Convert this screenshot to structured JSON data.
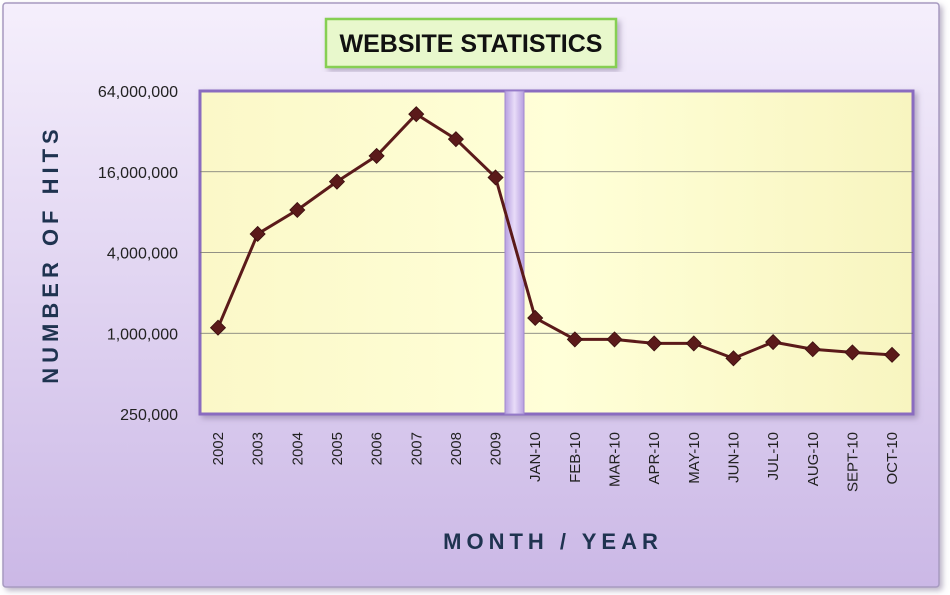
{
  "chart_data": {
    "type": "line",
    "title": "WEBSITE STATISTICS",
    "xlabel": "MONTH / YEAR",
    "ylabel": "NUMBER OF HITS",
    "y_scale": "log2",
    "ylim": [
      250000,
      64000000
    ],
    "y_ticks": [
      "64,000,000",
      "16,000,000",
      "4,000,000",
      "1,000,000",
      "250,000"
    ],
    "y_tick_values": [
      64000000,
      16000000,
      4000000,
      1000000,
      250000
    ],
    "grid": true,
    "legend": "none",
    "categories": [
      "2002",
      "2003",
      "2004",
      "2005",
      "2006",
      "2007",
      "2008",
      "2009",
      "JAN-10",
      "FEB-10",
      "MAR-10",
      "APR-10",
      "MAY-10",
      "JUN-10",
      "JUL-10",
      "AUG-10",
      "SEPT-10",
      "OCT-10"
    ],
    "series": [
      {
        "values": [
          1100000,
          5500000,
          8300000,
          13500000,
          21000000,
          43000000,
          28000000,
          14500000,
          1300000,
          900000,
          900000,
          840000,
          840000,
          650000,
          860000,
          760000,
          720000,
          690000
        ]
      }
    ],
    "colors": {
      "line": "#5b1a1a",
      "marker": "#5b1a1a",
      "plot_fill": "#ffffcc",
      "background_top": "#f4eefc",
      "background_bottom": "#cdbbe6",
      "title_box": "#e6f7c8",
      "title_border": "#8cd45a",
      "axis_label": "#1f3350",
      "divider": "#c9b5e8"
    }
  }
}
